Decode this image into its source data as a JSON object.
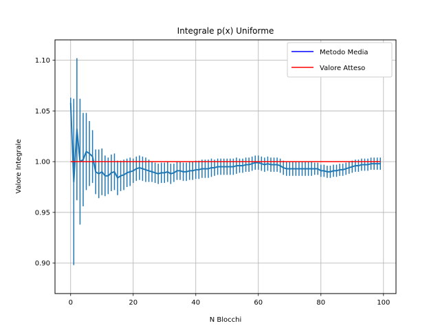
{
  "chart_data": {
    "type": "line",
    "title": "Integrale p(x) Uniforme",
    "xlabel": "N Blocchi",
    "ylabel": "Valore Integrale",
    "xlim": [
      -5,
      104
    ],
    "ylim": [
      0.87,
      1.12
    ],
    "xticks": [
      0,
      20,
      40,
      60,
      80,
      100
    ],
    "yticks": [
      0.9,
      0.95,
      1.0,
      1.05,
      1.1
    ],
    "xtick_labels": [
      "0",
      "20",
      "40",
      "60",
      "80",
      "100"
    ],
    "ytick_labels": [
      "0.90",
      "0.95",
      "1.00",
      "1.05",
      "1.10"
    ],
    "grid": true,
    "legend_position": "top-right",
    "series": [
      {
        "name": "Metodo Media",
        "color": "#1f77b4",
        "legend_color": "#0000ff",
        "x": [
          0,
          1,
          2,
          3,
          4,
          5,
          6,
          7,
          8,
          9,
          10,
          11,
          12,
          13,
          14,
          15,
          16,
          17,
          18,
          19,
          20,
          21,
          22,
          23,
          24,
          25,
          26,
          27,
          28,
          29,
          30,
          31,
          32,
          33,
          34,
          35,
          36,
          37,
          38,
          39,
          40,
          41,
          42,
          43,
          44,
          45,
          46,
          47,
          48,
          49,
          50,
          51,
          52,
          53,
          54,
          55,
          56,
          57,
          58,
          59,
          60,
          61,
          62,
          63,
          64,
          65,
          66,
          67,
          68,
          69,
          70,
          71,
          72,
          73,
          74,
          75,
          76,
          77,
          78,
          79,
          80,
          81,
          82,
          83,
          84,
          85,
          86,
          87,
          88,
          89,
          90,
          91,
          92,
          93,
          94,
          95,
          96,
          97,
          98,
          99
        ],
        "y": [
          1.058,
          0.98,
          1.032,
          1.0,
          1.002,
          1.01,
          1.008,
          1.005,
          0.99,
          0.988,
          0.99,
          0.986,
          0.986,
          0.989,
          0.99,
          0.984,
          0.986,
          0.987,
          0.989,
          0.99,
          0.991,
          0.993,
          0.994,
          0.993,
          0.992,
          0.991,
          0.99,
          0.989,
          0.988,
          0.989,
          0.989,
          0.99,
          0.988,
          0.989,
          0.991,
          0.991,
          0.99,
          0.99,
          0.991,
          0.991,
          0.992,
          0.992,
          0.993,
          0.993,
          0.993,
          0.994,
          0.994,
          0.995,
          0.995,
          0.995,
          0.995,
          0.995,
          0.995,
          0.996,
          0.996,
          0.996,
          0.997,
          0.997,
          0.998,
          0.999,
          0.999,
          0.998,
          0.997,
          0.998,
          0.997,
          0.997,
          0.997,
          0.996,
          0.994,
          0.993,
          0.993,
          0.993,
          0.993,
          0.993,
          0.993,
          0.993,
          0.993,
          0.993,
          0.993,
          0.993,
          0.991,
          0.991,
          0.99,
          0.99,
          0.991,
          0.991,
          0.992,
          0.992,
          0.993,
          0.994,
          0.995,
          0.996,
          0.996,
          0.997,
          0.997,
          0.997,
          0.998,
          0.998,
          0.998,
          0.998
        ],
        "err": [
          0.005,
          0.082,
          0.07,
          0.062,
          0.046,
          0.038,
          0.032,
          0.026,
          0.022,
          0.024,
          0.023,
          0.02,
          0.018,
          0.018,
          0.018,
          0.017,
          0.015,
          0.015,
          0.014,
          0.014,
          0.012,
          0.012,
          0.012,
          0.012,
          0.012,
          0.011,
          0.01,
          0.01,
          0.01,
          0.01,
          0.01,
          0.01,
          0.01,
          0.009,
          0.009,
          0.009,
          0.009,
          0.009,
          0.009,
          0.009,
          0.009,
          0.009,
          0.009,
          0.009,
          0.009,
          0.009,
          0.008,
          0.008,
          0.008,
          0.008,
          0.008,
          0.008,
          0.008,
          0.008,
          0.007,
          0.007,
          0.007,
          0.007,
          0.007,
          0.007,
          0.007,
          0.007,
          0.007,
          0.007,
          0.007,
          0.007,
          0.007,
          0.007,
          0.007,
          0.007,
          0.007,
          0.007,
          0.007,
          0.007,
          0.007,
          0.007,
          0.007,
          0.007,
          0.006,
          0.006,
          0.006,
          0.006,
          0.006,
          0.006,
          0.006,
          0.006,
          0.006,
          0.006,
          0.006,
          0.006,
          0.006,
          0.006,
          0.006,
          0.006,
          0.006,
          0.006,
          0.006,
          0.006,
          0.006,
          0.006
        ]
      },
      {
        "name": "Valore Atteso",
        "color": "#ff0000",
        "legend_color": "#ff0000",
        "x": [
          0,
          99
        ],
        "y": [
          1.0,
          1.0
        ]
      }
    ]
  }
}
